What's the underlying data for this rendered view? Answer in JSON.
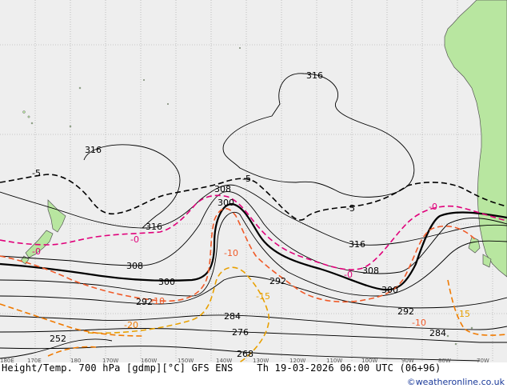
{
  "title": "Height/Temp. 700 hPa [gdmp][°C] GFS ENS",
  "valid_time": "Th 19-03-2026 06:00 UTC (06+96)",
  "credit": "©weatheronline.co.uk",
  "colors": {
    "ocean": "#eeeeee",
    "land": "#b8e6a0",
    "height_contour": "#000000",
    "dashed_isotherm": "#000000",
    "isotherm_zero": "#e0007a",
    "isotherm_minus10": "#f05a28",
    "isotherm_minus15": "#e8a000",
    "isotherm_minus20": "#f07a00"
  },
  "longitude_ticks": [
    "180E",
    "170E",
    "180",
    "170W",
    "160W",
    "150W",
    "140W",
    "130W",
    "120W",
    "110W",
    "100W",
    "90W",
    "80W",
    "70W"
  ],
  "height_labels": [
    "316",
    "316",
    "316",
    "316",
    "308",
    "308",
    "308",
    "300",
    "300",
    "300",
    "292",
    "292",
    "292",
    "284",
    "284",
    "276",
    "268",
    "252"
  ],
  "temperature_labels": [
    "-5",
    "-5",
    "-5",
    "-0",
    "-0",
    "-0",
    "-0",
    "-10",
    "-10",
    "-10",
    "-15",
    "-15",
    "-20"
  ]
}
